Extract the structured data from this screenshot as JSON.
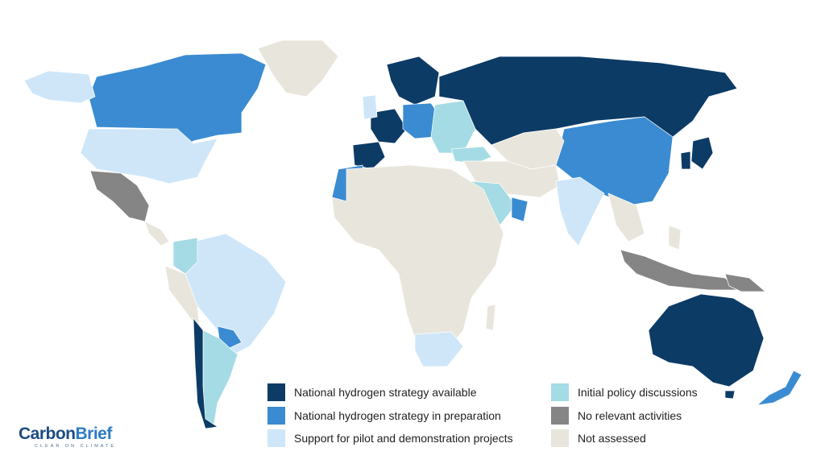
{
  "colors": {
    "strategy_available": "#0c3b66",
    "strategy_in_preparation": "#3a8bd1",
    "support_pilot": "#cfe6f8",
    "initial_policy": "#a5dbe4",
    "no_relevant": "#858585",
    "not_assessed": "#e8e5dc"
  },
  "legend": {
    "items": [
      {
        "label": "National hydrogen strategy available",
        "color": "#0c3b66"
      },
      {
        "label": "National hydrogen strategy in preparation",
        "color": "#3a8bd1"
      },
      {
        "label": "Support for pilot and demonstration projects",
        "color": "#cfe6f8"
      },
      {
        "label": "Initial policy discussions",
        "color": "#a5dbe4"
      },
      {
        "label": "No relevant activities",
        "color": "#858585"
      },
      {
        "label": "Not assessed",
        "color": "#e8e5dc"
      }
    ]
  },
  "brand": {
    "name_part1": "Carbon",
    "name_part2": "Brief",
    "tagline": "CLEAR ON CLIMATE"
  }
}
